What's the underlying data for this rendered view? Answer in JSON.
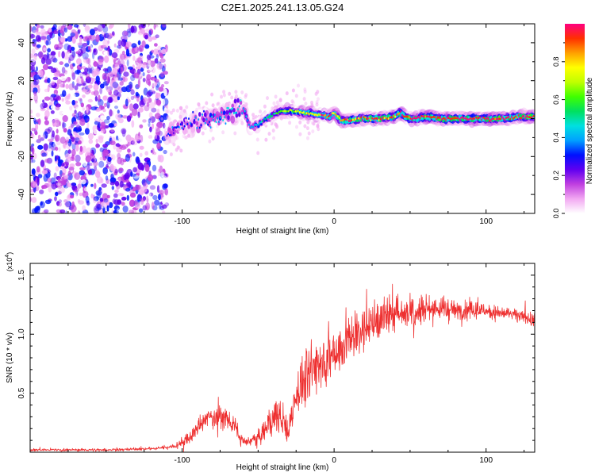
{
  "figure": {
    "title": "C2E1.2025.241.13.05.G24"
  },
  "chart_data": [
    {
      "type": "heatmap",
      "title": "C2E1.2025.241.13.05.G24",
      "xlabel": "Height of straight line (km)",
      "ylabel": "Frequency (Hz)",
      "xlim": [
        -200,
        132
      ],
      "ylim": [
        -50,
        50
      ],
      "xticks": [
        -100,
        0,
        100
      ],
      "xtick_labels": [
        "-100",
        "0",
        "100"
      ],
      "yticks": [
        -40,
        -20,
        0,
        20,
        40
      ],
      "ytick_labels": [
        "-40",
        "-20",
        "0",
        "20",
        "40"
      ],
      "colorbar": {
        "label": "Normalized spectral amplitude",
        "range": [
          0,
          1
        ],
        "ticks": [
          0.0,
          0.2,
          0.4,
          0.6,
          0.8
        ],
        "tick_labels": [
          "0.0",
          "0.2",
          "0.4",
          "0.6",
          "0.8"
        ],
        "colors": [
          "#ffffff",
          "#f2a8f2",
          "#c040e0",
          "#6000f0",
          "#0010ff",
          "#00a0ff",
          "#00e0e0",
          "#00e060",
          "#40ff00",
          "#c0ff00",
          "#ffff00",
          "#ffa000",
          "#ff3000",
          "#ff0080"
        ]
      },
      "noise_region": {
        "x": [
          -200,
          -110
        ],
        "freq": [
          -50,
          50
        ],
        "amplitude": 0.12
      },
      "ridge": {
        "x": [
          -110,
          -100,
          -90,
          -80,
          -70,
          -65,
          -60,
          -55,
          -50,
          -45,
          -40,
          -35,
          -30,
          -20,
          -10,
          -3,
          0,
          5,
          10,
          20,
          30,
          40,
          43,
          50,
          60,
          70,
          80,
          90,
          100,
          110,
          120,
          132
        ],
        "freq": [
          -7,
          -4,
          -1,
          0,
          3,
          5,
          6,
          -5,
          -3,
          0,
          2,
          4,
          4,
          3,
          2,
          1,
          3,
          -1,
          -1,
          0,
          0,
          1,
          3,
          0,
          1,
          0,
          0,
          0,
          0,
          0,
          1,
          1
        ],
        "amplitude": [
          0.3,
          0.35,
          0.35,
          0.4,
          0.45,
          0.45,
          0.4,
          0.4,
          0.45,
          0.5,
          0.55,
          0.6,
          0.65,
          0.7,
          0.75,
          0.8,
          0.75,
          0.85,
          0.85,
          0.85,
          0.85,
          0.85,
          0.85,
          0.9,
          0.9,
          0.92,
          0.92,
          0.92,
          0.92,
          0.92,
          0.92,
          0.92
        ]
      }
    },
    {
      "type": "line",
      "xlabel": "Height of straight line (km)",
      "ylabel": "SNR (10 * v/v)",
      "y_multiplier": "(x10",
      "y_multiplier_exp": "4",
      "y_multiplier_close": ")",
      "xlim": [
        -200,
        132
      ],
      "ylim": [
        0,
        1.6
      ],
      "xticks": [
        -100,
        0,
        100
      ],
      "xtick_labels": [
        "-100",
        "0",
        "100"
      ],
      "yticks": [
        0.5,
        1.0,
        1.5
      ],
      "ytick_labels": [
        "0.5",
        "1.0",
        "1.5"
      ],
      "series": [
        {
          "name": "SNR",
          "color": "#ee3030",
          "x": [
            -200,
            -150,
            -120,
            -105,
            -95,
            -90,
            -85,
            -80,
            -75,
            -70,
            -65,
            -62,
            -58,
            -55,
            -50,
            -45,
            -40,
            -35,
            -30,
            -28,
            -25,
            -20,
            -15,
            -10,
            -5,
            0,
            5,
            10,
            20,
            30,
            40,
            50,
            60,
            70,
            80,
            90,
            100,
            110,
            120,
            132
          ],
          "y": [
            0.02,
            0.02,
            0.03,
            0.05,
            0.12,
            0.2,
            0.28,
            0.3,
            0.3,
            0.28,
            0.22,
            0.12,
            0.08,
            0.1,
            0.12,
            0.2,
            0.3,
            0.3,
            0.15,
            0.35,
            0.5,
            0.6,
            0.7,
            0.75,
            0.8,
            0.85,
            0.9,
            0.95,
            1.05,
            1.12,
            1.18,
            1.2,
            1.22,
            1.22,
            1.2,
            1.2,
            1.2,
            1.18,
            1.16,
            1.12
          ],
          "noise_amp": [
            0.01,
            0.01,
            0.01,
            0.02,
            0.05,
            0.07,
            0.08,
            0.08,
            0.08,
            0.07,
            0.06,
            0.04,
            0.03,
            0.04,
            0.05,
            0.1,
            0.15,
            0.15,
            0.1,
            0.15,
            0.18,
            0.2,
            0.22,
            0.2,
            0.2,
            0.2,
            0.2,
            0.2,
            0.18,
            0.16,
            0.15,
            0.14,
            0.12,
            0.1,
            0.08,
            0.07,
            0.06,
            0.05,
            0.05,
            0.05
          ]
        }
      ]
    }
  ]
}
